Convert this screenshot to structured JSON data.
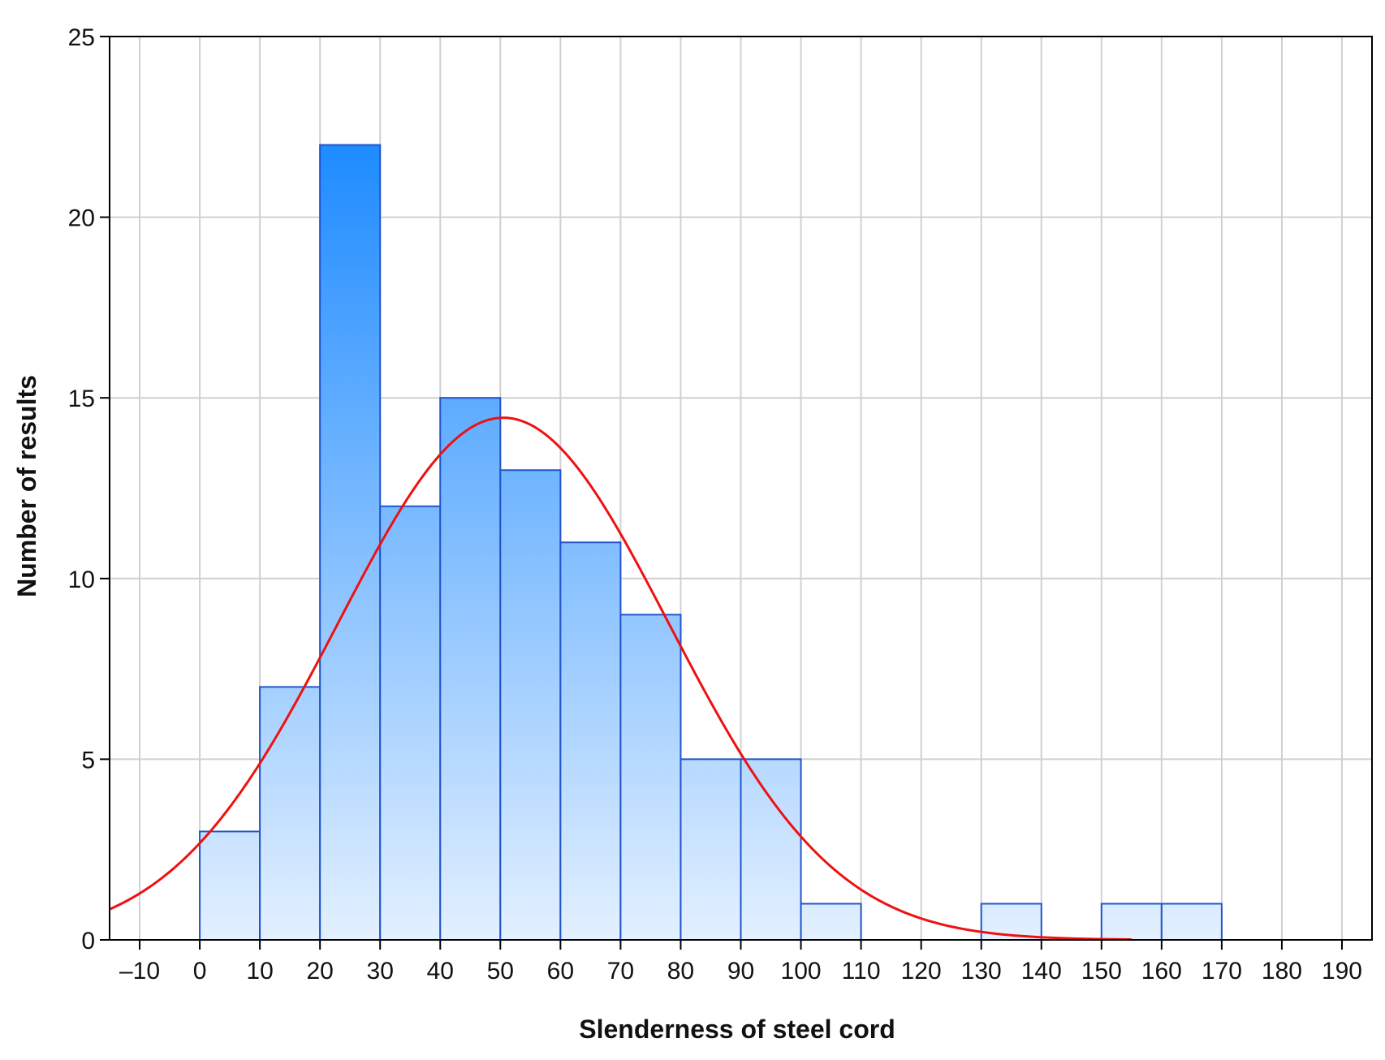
{
  "chart_data": {
    "type": "bar",
    "subtype": "histogram with fitted normal curve",
    "xlabel": "Slenderness of steel cord",
    "ylabel": "Number of results",
    "xlim": [
      -15,
      195
    ],
    "ylim": [
      0,
      25
    ],
    "x_ticks": [
      -10,
      0,
      10,
      20,
      30,
      40,
      50,
      60,
      70,
      80,
      90,
      100,
      110,
      120,
      130,
      140,
      150,
      160,
      170,
      180,
      190
    ],
    "x_tick_labels": [
      "–10",
      "0",
      "10",
      "20",
      "30",
      "40",
      "50",
      "60",
      "70",
      "80",
      "90",
      "100",
      "110",
      "120",
      "130",
      "140",
      "150",
      "160",
      "170",
      "180",
      "190"
    ],
    "y_ticks": [
      0,
      5,
      10,
      15,
      20,
      25
    ],
    "y_tick_labels": [
      "0",
      "5",
      "10",
      "15",
      "20",
      "25"
    ],
    "grid": true,
    "bins": [
      {
        "from": 0,
        "to": 10,
        "count": 3
      },
      {
        "from": 10,
        "to": 20,
        "count": 7
      },
      {
        "from": 20,
        "to": 30,
        "count": 22
      },
      {
        "from": 30,
        "to": 40,
        "count": 12
      },
      {
        "from": 40,
        "to": 50,
        "count": 15
      },
      {
        "from": 50,
        "to": 60,
        "count": 13
      },
      {
        "from": 60,
        "to": 70,
        "count": 11
      },
      {
        "from": 70,
        "to": 80,
        "count": 9
      },
      {
        "from": 80,
        "to": 90,
        "count": 5
      },
      {
        "from": 90,
        "to": 100,
        "count": 5
      },
      {
        "from": 100,
        "to": 110,
        "count": 1
      },
      {
        "from": 130,
        "to": 140,
        "count": 1
      },
      {
        "from": 150,
        "to": 160,
        "count": 1
      },
      {
        "from": 160,
        "to": 170,
        "count": 1
      }
    ],
    "fit_curve": {
      "type": "normal",
      "peak": 14.45,
      "mean": 50.5,
      "sd": 27.5,
      "x_range": [
        -15,
        155
      ]
    },
    "colors": {
      "bar_top": "#1e8bff",
      "bar_bottom": "#e3f0ff",
      "bar_edge": "#2255cc",
      "curve": "#ee1111",
      "grid": "#d0d0d0",
      "axis": "#000000"
    }
  }
}
